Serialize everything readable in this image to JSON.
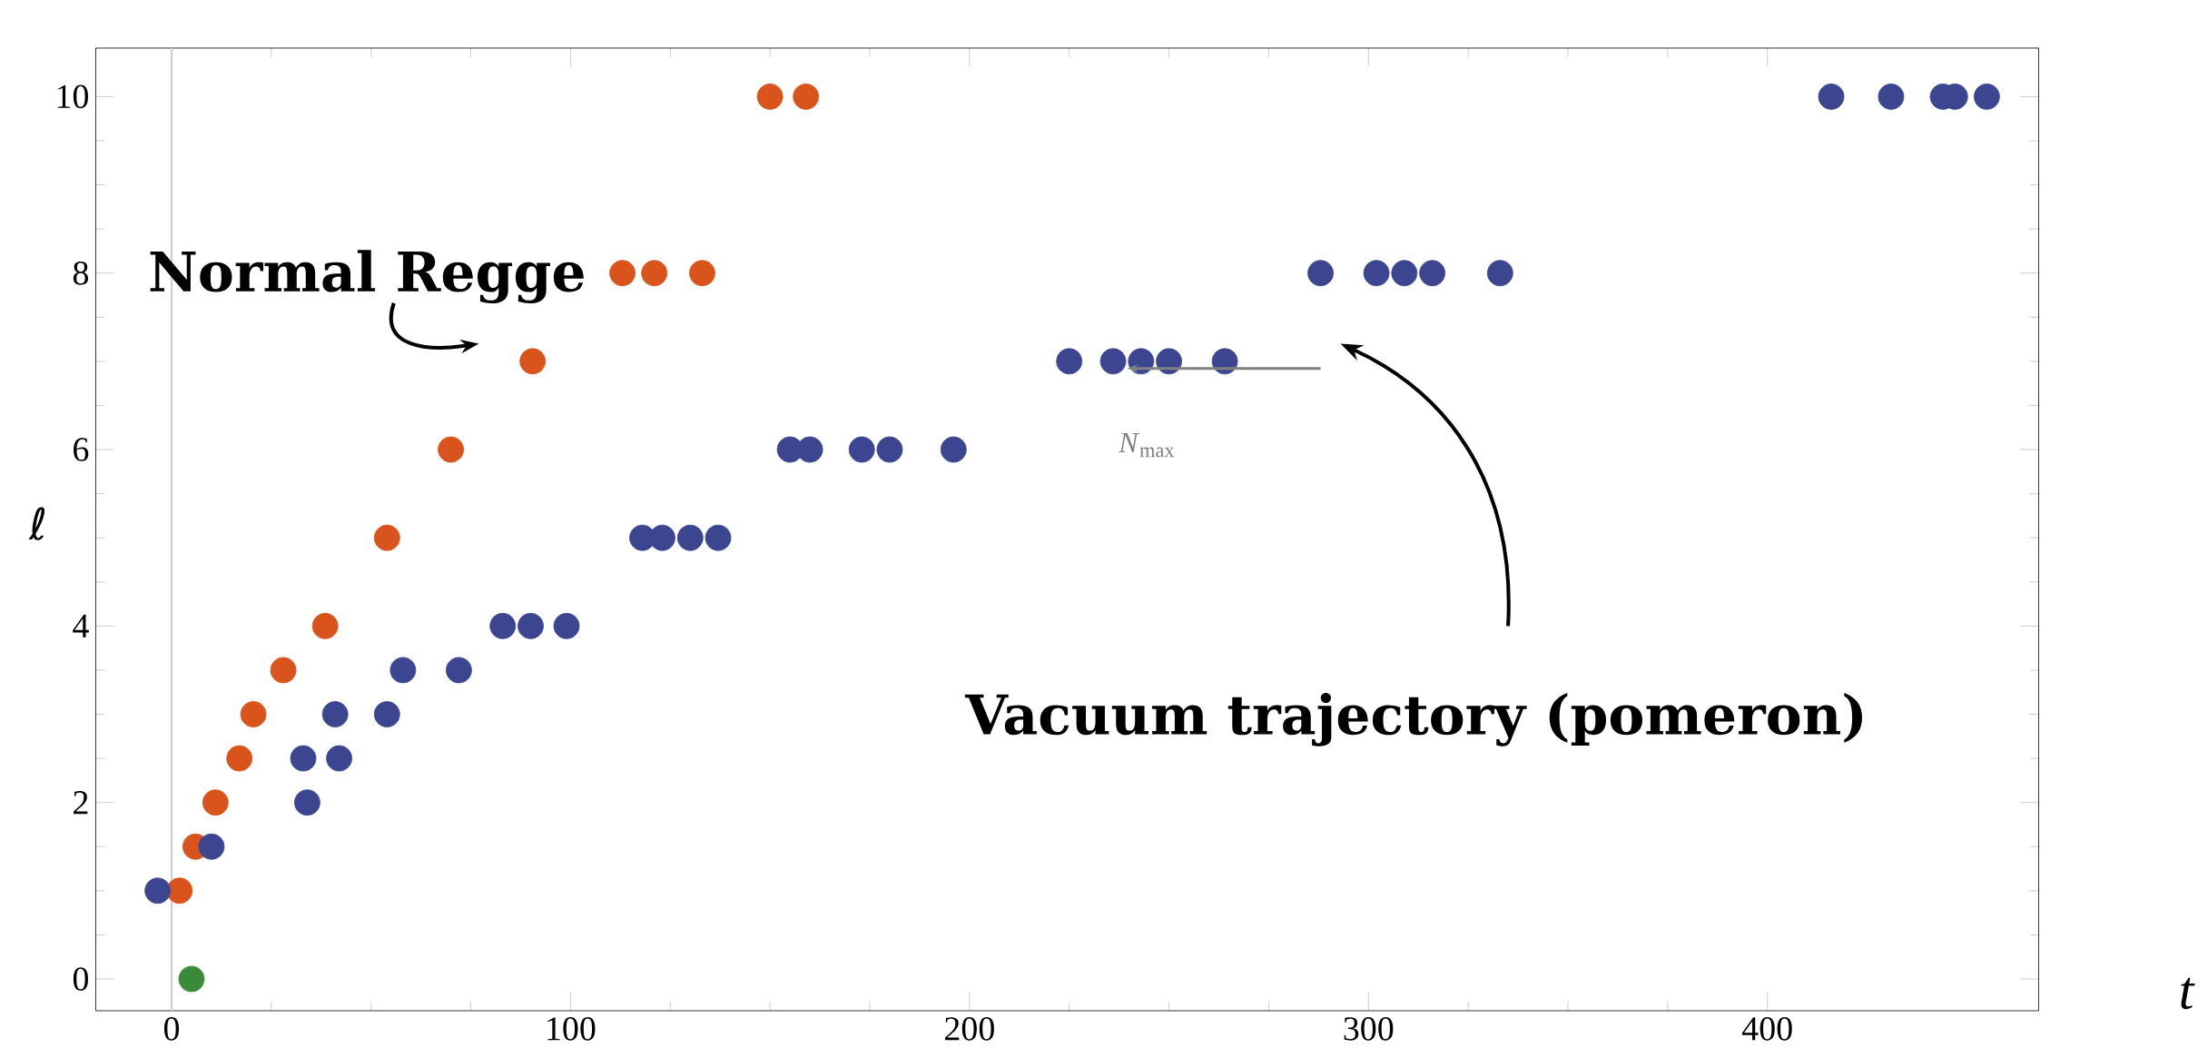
{
  "chart_data": {
    "type": "scatter",
    "xlabel": "t",
    "ylabel": "ℓ",
    "xlim": [
      -19,
      468
    ],
    "ylim": [
      -0.36,
      10.55
    ],
    "xticks": [
      0,
      100,
      200,
      300,
      400
    ],
    "yticks": [
      0,
      2,
      4,
      6,
      8,
      10
    ],
    "grid": false,
    "series": [
      {
        "color": "#d9541c",
        "x": [
          2,
          6,
          11,
          17,
          20.5,
          28,
          38.5,
          54,
          70,
          90.5,
          113,
          121,
          133,
          150,
          159
        ],
        "values": [
          1,
          1.5,
          2,
          2.5,
          3,
          3.5,
          4,
          5,
          6,
          7,
          8,
          8,
          8,
          10,
          10
        ]
      },
      {
        "color": "#3c4590",
        "x": [
          -3.5,
          10,
          34,
          33,
          42,
          41,
          54,
          58,
          72,
          83,
          90,
          99,
          118,
          123,
          130,
          137,
          155,
          160,
          173,
          180,
          196,
          225,
          236,
          243,
          250,
          264,
          288,
          302,
          309,
          316,
          333,
          416,
          431,
          444,
          447,
          455
        ],
        "values": [
          1,
          1.5,
          2,
          2.5,
          2.5,
          3,
          3,
          3.5,
          3.5,
          4,
          4,
          4,
          5,
          5,
          5,
          5,
          6,
          6,
          6,
          6,
          6,
          7,
          7,
          7,
          7,
          7,
          8,
          8,
          8,
          8,
          8,
          10,
          10,
          10,
          10,
          10
        ]
      },
      {
        "color": "#3a8a3a",
        "x": [
          5
        ],
        "values": [
          0
        ]
      }
    ],
    "ref_lines": [
      {
        "axis": "x",
        "value": 0,
        "color": "#d0d0d0"
      }
    ],
    "annotations": [
      "Normal Regge",
      "Vacuum trajectory (pomeron)",
      "*N*$_{max}$"
    ]
  }
}
